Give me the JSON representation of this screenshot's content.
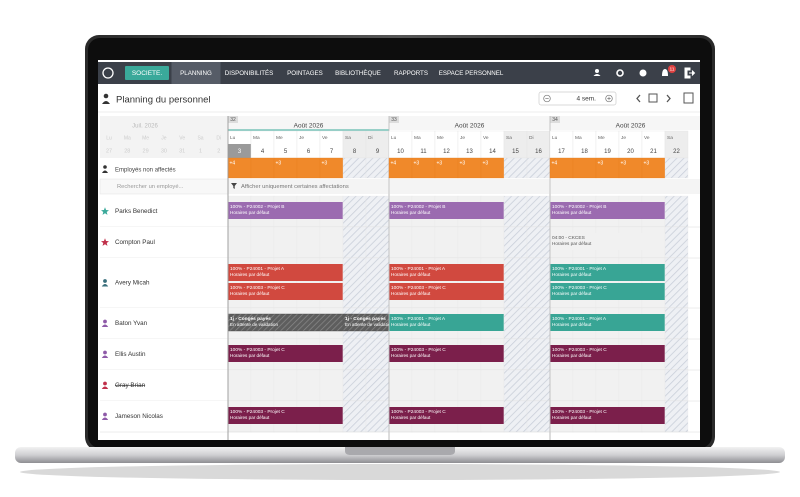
{
  "nav": {
    "company": "SOCIETE.",
    "tabs": [
      "PLANNING",
      "DISPONIBILITÉS",
      "POINTAGES",
      "BIBLIOTHÈQUE",
      "RAPPORTS",
      "ESPACE PERSONNEL"
    ],
    "active_tab": 0,
    "badge": "11"
  },
  "header": {
    "title": "Planning du personnel",
    "period": "4 sem."
  },
  "calendar": {
    "prev_month": "Juil. 2026",
    "prev_days": [
      "27",
      "28",
      "29",
      "30",
      "31",
      "1",
      "2"
    ],
    "day_letters": [
      "Lu",
      "Ma",
      "Me",
      "Je",
      "Ve",
      "Sa",
      "Di"
    ],
    "today": "3",
    "weeks": [
      {
        "number": "32",
        "month": "Août 2026",
        "days": [
          "3",
          "4",
          "5",
          "6",
          "7",
          "8",
          "9"
        ]
      },
      {
        "number": "33",
        "month": "Août 2026",
        "days": [
          "10",
          "11",
          "12",
          "13",
          "14",
          "15",
          "16"
        ]
      },
      {
        "number": "34",
        "month": "Août 2026",
        "days": [
          "17",
          "18",
          "19",
          "20",
          "21",
          "22"
        ]
      }
    ]
  },
  "unassigned": {
    "label": "Employés non affectés",
    "color": "#f0892a",
    "counts": [
      [
        "+4",
        null,
        "+3",
        null,
        "+3",
        null,
        null
      ],
      [
        "+4",
        "+3",
        "+3",
        "+3",
        "+3",
        null,
        null
      ],
      [
        "+4",
        null,
        "+3",
        "+3",
        "+3",
        null
      ]
    ]
  },
  "search_placeholder": "Rechercher un employé...",
  "filter": "Afficher uniquement certaines affectations",
  "employees": [
    {
      "name": "Parks Benedict",
      "marker": "star",
      "marker_color": "#3aa99a",
      "weeks": [
        [
          {
            "title": "100% - P24002 - Projet B",
            "subtitle": "Horaires par défaut",
            "color": "#9b6bb0"
          }
        ],
        [
          {
            "title": "100% - P24002 - Projet B",
            "subtitle": "Horaires par défaut",
            "color": "#9b6bb0"
          }
        ],
        [
          {
            "title": "100% - P24002 - Projet B",
            "subtitle": "Horaires par défaut",
            "color": "#9b6bb0"
          }
        ]
      ]
    },
    {
      "name": "Compton Paul",
      "marker": "star",
      "marker_color": "#c0304a",
      "weeks": [
        [],
        [],
        [
          {
            "title": "04:00 - CKCES",
            "subtitle": "Horaires par défaut",
            "color": null
          }
        ]
      ]
    },
    {
      "name": "Avery Micah",
      "marker": "person",
      "marker_color": "#3a6f7c",
      "weeks": [
        [
          {
            "title": "100% - P24001 - Projet A",
            "subtitle": "Horaires par défaut",
            "color": "#d1493f"
          },
          {
            "title": "100% - P24003 - Projet C",
            "subtitle": "Horaires par défaut",
            "color": "#d1493f"
          }
        ],
        [
          {
            "title": "100% - P24001 - Projet A",
            "subtitle": "Horaires par défaut",
            "color": "#d1493f"
          },
          {
            "title": "100% - P24003 - Projet C",
            "subtitle": "Horaires par défaut",
            "color": "#d1493f"
          }
        ],
        [
          {
            "title": "100% - P24001 - Projet A",
            "subtitle": "Horaires par défaut",
            "color": "#38a595"
          },
          {
            "title": "100% - P24003 - Projet C",
            "subtitle": "Horaires par défaut",
            "color": "#38a595"
          }
        ]
      ]
    },
    {
      "name": "Baton Yvan",
      "marker": "person",
      "marker_color": "#8e5aa8",
      "weeks": [
        [
          {
            "title": "1j - Congés payés",
            "subtitle": "En attente de validation",
            "color": "#5c5c5c",
            "hatched": true
          },
          {
            "title": "1j - Congés payés",
            "subtitle": "En attente de validation",
            "color": "#5c5c5c",
            "hatched": true
          }
        ],
        [
          {
            "title": "100% - P24001 - Projet A",
            "subtitle": "Horaires par défaut",
            "color": "#38a595"
          }
        ],
        [
          {
            "title": "100% - P24001 - Projet A",
            "subtitle": "Horaires par défaut",
            "color": "#38a595"
          }
        ]
      ]
    },
    {
      "name": "Ellis Austin",
      "marker": "person",
      "marker_color": "#8e5aa8",
      "weeks": [
        [
          {
            "title": "100% - P24003 - Projet C",
            "subtitle": "Horaires par défaut",
            "color": "#7b1f4b"
          }
        ],
        [
          {
            "title": "100% - P24003 - Projet C",
            "subtitle": "Horaires par défaut",
            "color": "#7b1f4b"
          }
        ],
        [
          {
            "title": "100% - P24003 - Projet C",
            "subtitle": "Horaires par défaut",
            "color": "#7b1f4b"
          }
        ]
      ]
    },
    {
      "name": "Gray Brian",
      "marker": "person",
      "marker_color": "#c0304a",
      "inactive": true,
      "weeks": [
        [],
        [],
        []
      ]
    },
    {
      "name": "Jameson Nicolas",
      "marker": "person",
      "marker_color": "#8e5aa8",
      "weeks": [
        [
          {
            "title": "100% - P24003 - Projet C",
            "subtitle": "Horaires par défaut",
            "color": "#7b1f4b"
          }
        ],
        [
          {
            "title": "100% - P24003 - Projet C",
            "subtitle": "Horaires par défaut",
            "color": "#7b1f4b"
          }
        ],
        [
          {
            "title": "100% - P24003 - Projet C",
            "subtitle": "Horaires par défaut",
            "color": "#7b1f4b"
          }
        ]
      ]
    }
  ]
}
